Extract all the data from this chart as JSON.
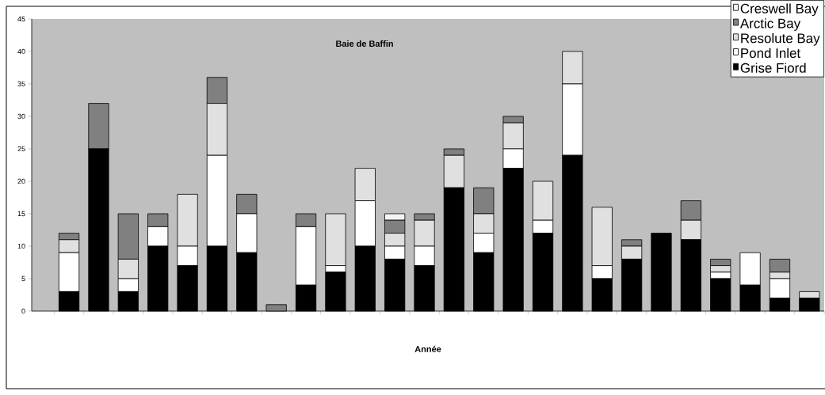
{
  "chart_data": {
    "type": "bar",
    "stacked": true,
    "title": "Baie de Baffin",
    "xlabel": "Année",
    "categories": [
      null,
      null,
      null,
      null,
      null,
      null,
      null,
      null,
      null,
      null,
      null,
      null,
      null,
      null,
      null,
      null,
      null,
      null,
      null,
      null,
      null,
      null,
      null,
      null,
      null,
      null
    ],
    "series": [
      {
        "name": "Grise Fiord",
        "color": "#000000",
        "values": [
          3,
          25,
          3,
          10,
          7,
          10,
          9,
          0,
          4,
          6,
          10,
          8,
          7,
          19,
          9,
          22,
          12,
          24,
          5,
          8,
          12,
          11,
          5,
          4,
          2,
          2
        ]
      },
      {
        "name": "Pond Inlet",
        "color": "#ffffff",
        "values": [
          6,
          0,
          2,
          3,
          3,
          14,
          6,
          0,
          9,
          1,
          7,
          2,
          3,
          0,
          3,
          3,
          2,
          11,
          2,
          0,
          0,
          0,
          1,
          5,
          3,
          0
        ]
      },
      {
        "name": "Resolute Bay",
        "color": "#e0e0e0",
        "values": [
          2,
          0,
          3,
          0,
          8,
          8,
          0,
          0,
          0,
          8,
          5,
          2,
          4,
          5,
          3,
          4,
          6,
          5,
          9,
          2,
          0,
          3,
          1,
          0,
          1,
          1
        ]
      },
      {
        "name": "Arctic Bay",
        "color": "#808080",
        "values": [
          1,
          7,
          7,
          2,
          0,
          4,
          3,
          1,
          2,
          0,
          0,
          2,
          1,
          1,
          4,
          1,
          0,
          0,
          0,
          1,
          0,
          3,
          1,
          0,
          2,
          0
        ]
      },
      {
        "name": "Creswell Bay",
        "color": "#f4f4f4",
        "values": [
          0,
          0,
          0,
          0,
          0,
          0,
          0,
          0,
          0,
          0,
          0,
          1,
          0,
          0,
          0,
          0,
          0,
          0,
          0,
          0,
          0,
          0,
          0,
          0,
          0,
          0
        ]
      }
    ],
    "ylim": [
      0,
      45
    ],
    "yticks": [
      0,
      5,
      10,
      15,
      20,
      25,
      30,
      35,
      40,
      45
    ],
    "legend": "top right",
    "grid": false
  }
}
